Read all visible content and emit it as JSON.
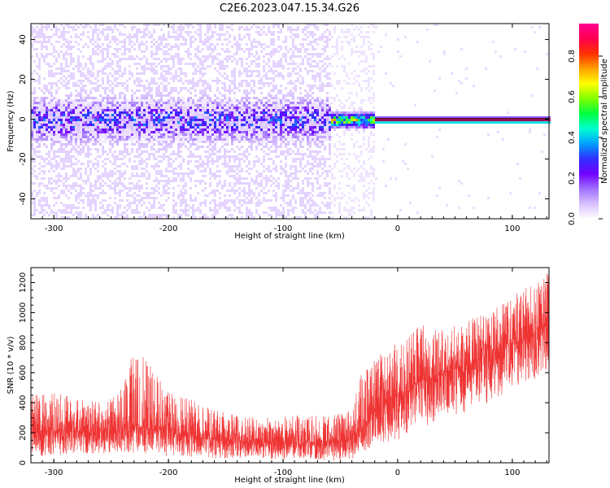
{
  "title": "C2E6.2023.047.15.34.G26",
  "chart_data": [
    {
      "type": "heatmap",
      "xlabel": "Height of straight line (km)",
      "ylabel": "Frequency (Hz)",
      "xlim": [
        -320,
        132
      ],
      "ylim": [
        -50,
        48
      ],
      "xticks": [
        -300,
        -200,
        -100,
        0,
        100
      ],
      "yticks": [
        -40,
        -20,
        0,
        20,
        40
      ],
      "colorbar": {
        "label": "Normalized spectral amplitude",
        "range": [
          0,
          0.96
        ],
        "ticks": [
          "0.0",
          "0.2",
          "0.4",
          "0.6",
          "0.8"
        ],
        "colors": [
          "#ffffff",
          "#d8c0ff",
          "#a070ff",
          "#7000ff",
          "#3030ff",
          "#00a0ff",
          "#00ffd0",
          "#00ff40",
          "#80ff00",
          "#ffff00",
          "#ffa000",
          "#ff3000",
          "#ff0050",
          "#ff0090"
        ]
      },
      "regions": [
        {
          "x_range": [
            -320,
            -60
          ],
          "description_values": {
            "core_band_hz": [
              -10,
              10
            ],
            "peak_amplitude": 0.3,
            "background_amplitude": 0.05
          }
        },
        {
          "x_range": [
            -60,
            -20
          ],
          "description_values": {
            "core_band_hz": [
              -3,
              3
            ],
            "peak_amplitude": 0.85
          }
        },
        {
          "x_range": [
            -20,
            132
          ],
          "description_values": {
            "core_band_hz": [
              -1,
              1
            ],
            "peak_amplitude": 0.96
          }
        }
      ]
    },
    {
      "type": "line",
      "xlabel": "Height of straight line (km)",
      "ylabel": "SNR (10 * v/v)",
      "xlim": [
        -320,
        132
      ],
      "ylim": [
        0,
        1300
      ],
      "xticks": [
        -300,
        -200,
        -100,
        0,
        100
      ],
      "yticks": [
        0,
        200,
        400,
        600,
        800,
        1000,
        1200
      ],
      "color": "#ef3333",
      "series": [
        {
          "x": [
            -320,
            -300,
            -280,
            -260,
            -240,
            -230,
            -220,
            -200,
            -180,
            -160,
            -140,
            -120,
            -100,
            -80,
            -60,
            -40,
            -30,
            -20,
            0,
            20,
            40,
            60,
            80,
            100,
            120,
            132
          ],
          "y_mean": [
            200,
            210,
            215,
            210,
            230,
            250,
            245,
            210,
            185,
            160,
            145,
            140,
            140,
            138,
            140,
            165,
            250,
            350,
            450,
            550,
            600,
            650,
            730,
            800,
            880,
            950
          ],
          "y_max": [
            450,
            470,
            430,
            420,
            500,
            760,
            690,
            480,
            420,
            360,
            320,
            300,
            310,
            320,
            310,
            360,
            640,
            700,
            800,
            920,
            880,
            960,
            1000,
            1120,
            1220,
            1280
          ],
          "y_min": [
            40,
            50,
            60,
            60,
            70,
            60,
            60,
            40,
            40,
            30,
            20,
            30,
            20,
            30,
            10,
            20,
            70,
            120,
            150,
            230,
            300,
            330,
            400,
            500,
            560,
            640
          ]
        }
      ]
    }
  ]
}
